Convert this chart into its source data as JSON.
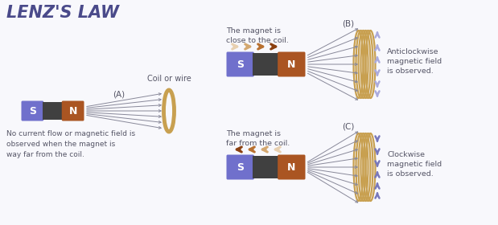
{
  "title": "LENZ'S LAW",
  "title_color": "#4a4a8a",
  "bg_color": "#f8f8fc",
  "label_A": "(A)",
  "label_B": "(B)",
  "label_C": "(C)",
  "coil_label": "Coil or wire",
  "text_A": "No current flow or magnetic field is\nobserved when the magnet is\nway far from the coil.",
  "text_B_title": "The magnet is\nclose to the coil.",
  "text_C_title": "The magnet is\nfar from the coil.",
  "text_B": "Anticlockwise\nmagnetic field\nis observed.",
  "text_C": "Clockwise\nmagnetic field\nis observed.",
  "s_color": "#7070cc",
  "n_color": "#aa5522",
  "mid_color": "#404040",
  "coil_color": "#c8a050",
  "arrow_color": "#888899",
  "field_arrow_up_B": "#aaaadd",
  "field_arrow_dn_B": "#ccccee",
  "field_arrow_up_C": "#ccccee",
  "field_arrow_dn_C": "#7777bb",
  "text_color": "#555566",
  "move_arrow_colors_right": [
    "#e8d0b0",
    "#d4a870",
    "#b87030",
    "#8b4010"
  ],
  "move_arrow_colors_left": [
    "#8b4010",
    "#b87030",
    "#d4a870",
    "#e8d0b0"
  ]
}
